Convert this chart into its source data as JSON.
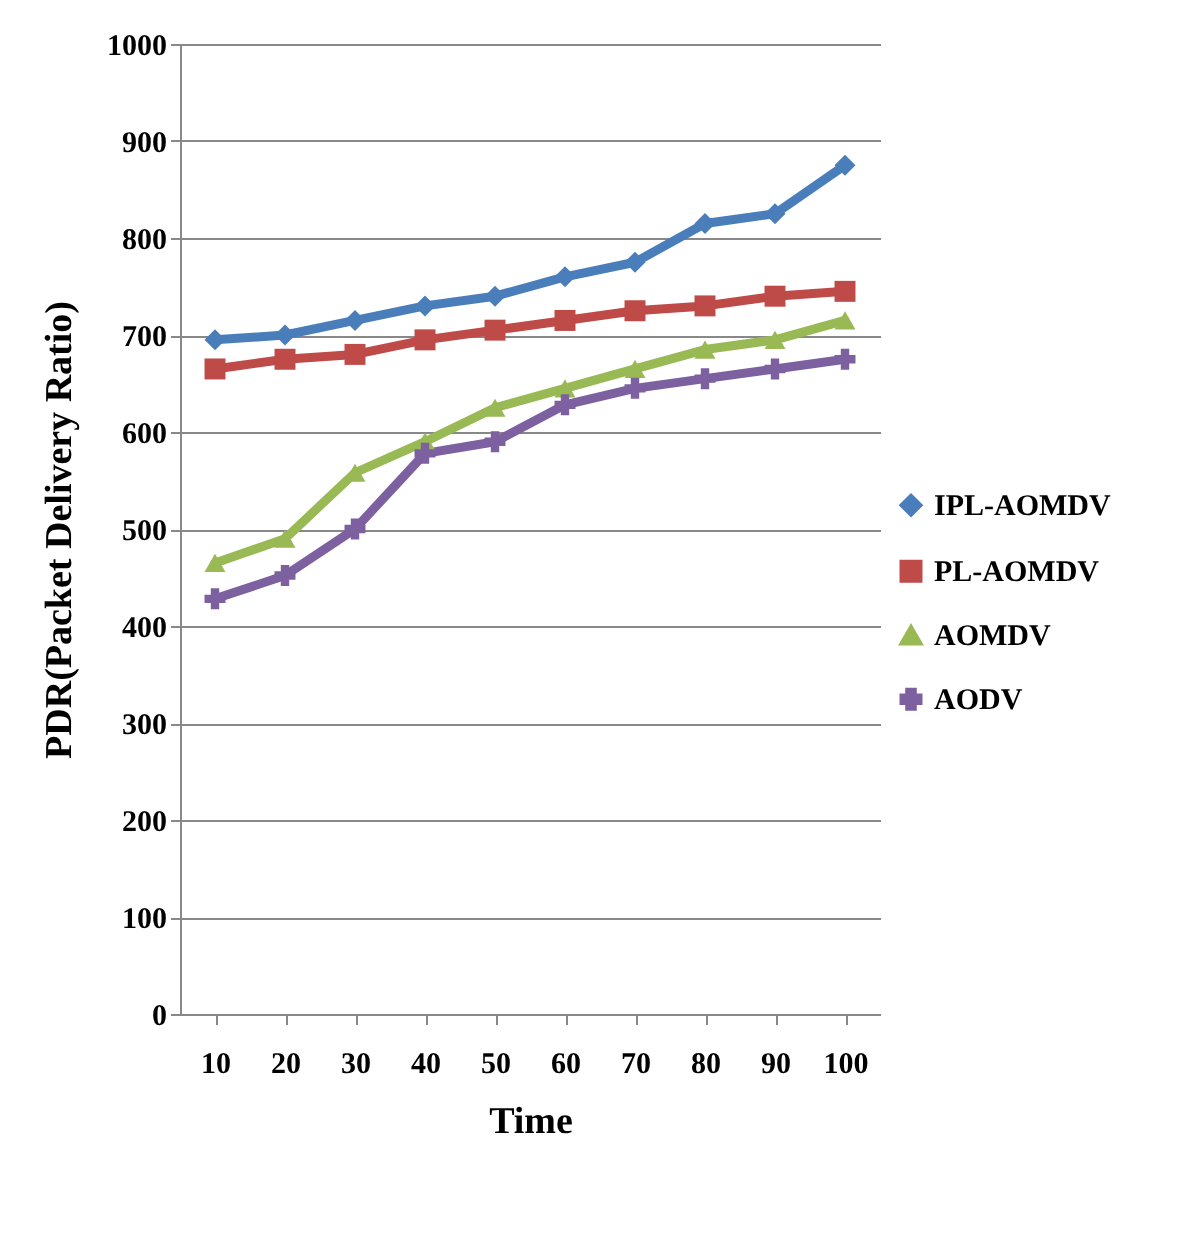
{
  "chart_data": {
    "type": "line",
    "xlabel": "Time",
    "ylabel": "PDR(Packet Delivery Ratio)",
    "categories": [
      "10",
      "20",
      "30",
      "40",
      "50",
      "60",
      "70",
      "80",
      "90",
      "100"
    ],
    "series": [
      {
        "name": "IPL-AOMDV",
        "color": "#4a7ebb",
        "marker": "diamond",
        "values": [
          695,
          700,
          715,
          730,
          740,
          760,
          775,
          815,
          825,
          875
        ]
      },
      {
        "name": "PL-AOMDV",
        "color": "#be4b48",
        "marker": "square",
        "values": [
          665,
          675,
          680,
          695,
          705,
          715,
          725,
          730,
          740,
          745
        ]
      },
      {
        "name": "AOMDV",
        "color": "#98b954",
        "marker": "triangle",
        "values": [
          465,
          490,
          558,
          590,
          625,
          645,
          665,
          685,
          695,
          715
        ]
      },
      {
        "name": "AODV",
        "color": "#7d60a0",
        "marker": "cross",
        "values": [
          428,
          452,
          500,
          578,
          590,
          628,
          645,
          655,
          665,
          675
        ]
      }
    ],
    "ylim": [
      0,
      1000
    ],
    "yticks": [
      0,
      100,
      200,
      300,
      400,
      500,
      600,
      700,
      800,
      900,
      1000
    ],
    "grid": "y",
    "legend": "right"
  }
}
